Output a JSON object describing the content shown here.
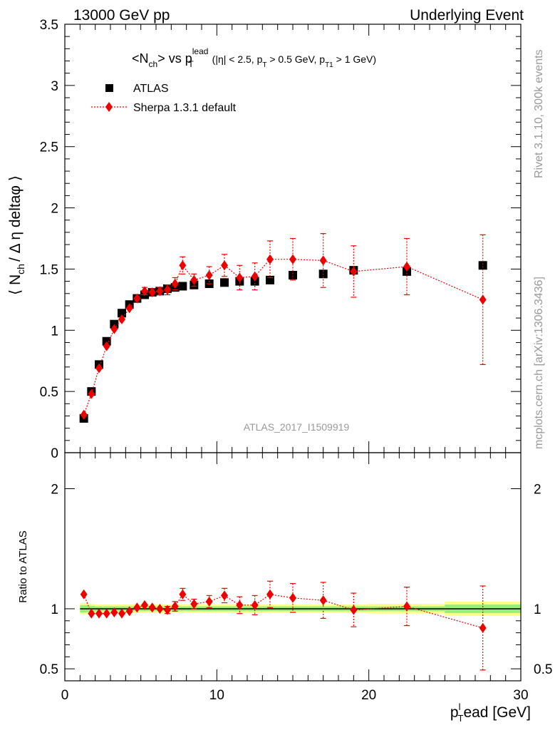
{
  "header": {
    "left": "13000 GeV pp",
    "right": "Underlying Event"
  },
  "side_labels": {
    "rivet": "Rivet 3.1.10,  300k events",
    "mcplots": "mcplots.cern.ch [arXiv:1306.3436]"
  },
  "watermark": "ATLAS_2017_I1509919",
  "colors": {
    "data": "#000000",
    "mc": "#ee0000",
    "band_inner": "#99ee77",
    "band_outer": "#ffff88"
  },
  "chart_data": [
    {
      "type": "scatter",
      "panel": "main",
      "title": {
        "part1": "<N",
        "sub1": "ch",
        "part2": "> vs p",
        "sup2": "lead",
        "sub2": "T",
        "part3": " (|η| < 2.5, p",
        "sub3": "T",
        "part4": " > 0.5 GeV, p",
        "sub4": "T1",
        "part5": " > 1 GeV)"
      },
      "ylabel": {
        "part1": "⟨ N",
        "sub": "ch",
        "part2": "/ Δ η deltaφ ⟩"
      },
      "xlim": [
        0,
        30
      ],
      "ylim": [
        0,
        3.5
      ],
      "yticks": [
        0,
        0.5,
        1,
        1.5,
        2,
        2.5,
        3,
        3.5
      ],
      "ytick_labels": [
        "0",
        "0.5",
        "1",
        "1.5",
        "2",
        "2.5",
        "3",
        "3.5"
      ],
      "legend_position": "top-left",
      "series": [
        {
          "name": "ATLAS",
          "marker": "square",
          "x": [
            1.25,
            1.75,
            2.25,
            2.75,
            3.25,
            3.75,
            4.25,
            4.75,
            5.25,
            5.75,
            6.25,
            6.75,
            7.25,
            7.75,
            8.5,
            9.5,
            10.5,
            11.5,
            12.5,
            13.5,
            15,
            17,
            19,
            22.5,
            27.5
          ],
          "y": [
            0.28,
            0.5,
            0.72,
            0.91,
            1.05,
            1.14,
            1.21,
            1.26,
            1.29,
            1.31,
            1.32,
            1.34,
            1.35,
            1.36,
            1.37,
            1.38,
            1.39,
            1.4,
            1.4,
            1.41,
            1.45,
            1.46,
            1.49,
            1.48,
            1.53
          ]
        },
        {
          "name": "Sherpa 1.3.1 default",
          "marker": "diamond",
          "x": [
            1.25,
            1.75,
            2.25,
            2.75,
            3.25,
            3.75,
            4.25,
            4.75,
            5.25,
            5.75,
            6.25,
            6.75,
            7.25,
            7.75,
            8.5,
            9.5,
            10.5,
            11.5,
            12.5,
            13.5,
            15,
            17,
            19,
            22.5,
            27.5
          ],
          "y": [
            0.31,
            0.48,
            0.69,
            0.87,
            1.01,
            1.09,
            1.18,
            1.26,
            1.32,
            1.31,
            1.32,
            1.33,
            1.38,
            1.53,
            1.41,
            1.45,
            1.53,
            1.43,
            1.44,
            1.58,
            1.58,
            1.57,
            1.48,
            1.52,
            1.25
          ],
          "yerr": [
            0.02,
            0.02,
            0.02,
            0.02,
            0.02,
            0.02,
            0.02,
            0.02,
            0.03,
            0.03,
            0.03,
            0.04,
            0.05,
            0.07,
            0.05,
            0.07,
            0.09,
            0.1,
            0.11,
            0.15,
            0.17,
            0.22,
            0.21,
            0.23,
            0.53
          ]
        }
      ]
    },
    {
      "type": "scatter",
      "panel": "ratio",
      "ylabel": "Ratio to ATLAS",
      "xlabel": {
        "part1": "p",
        "sup": "l",
        "sub": "T",
        "part2": "ead [GeV]"
      },
      "xlim": [
        0,
        30
      ],
      "ylim": [
        0.4,
        2.3
      ],
      "xticks": [
        0,
        10,
        20,
        30
      ],
      "xtick_labels": [
        "0",
        "10",
        "20",
        "30"
      ],
      "yticks": [
        0.5,
        1,
        2
      ],
      "ytick_labels": [
        "0.5",
        "1",
        "2"
      ],
      "reference_line": 1,
      "series": [
        {
          "name": "Sherpa 1.3.1 default",
          "marker": "diamond",
          "x": [
            1.25,
            1.75,
            2.25,
            2.75,
            3.25,
            3.75,
            4.25,
            4.75,
            5.25,
            5.75,
            6.25,
            6.75,
            7.25,
            7.75,
            8.5,
            9.5,
            10.5,
            11.5,
            12.5,
            13.5,
            15,
            17,
            19,
            22.5,
            27.5
          ],
          "y": [
            1.12,
            0.96,
            0.96,
            0.96,
            0.97,
            0.96,
            0.98,
            1.01,
            1.03,
            1.01,
            1.0,
            0.99,
            1.02,
            1.12,
            1.04,
            1.06,
            1.11,
            1.03,
            1.03,
            1.12,
            1.09,
            1.07,
            0.99,
            1.02,
            0.84
          ],
          "yerr": [
            0.02,
            0.02,
            0.02,
            0.02,
            0.02,
            0.02,
            0.02,
            0.02,
            0.02,
            0.02,
            0.02,
            0.03,
            0.04,
            0.05,
            0.04,
            0.05,
            0.06,
            0.07,
            0.08,
            0.11,
            0.12,
            0.15,
            0.14,
            0.16,
            0.35
          ]
        }
      ],
      "band": {
        "x_edges": [
          1,
          1.5,
          2,
          2.5,
          3,
          3.5,
          4,
          4.5,
          5,
          5.5,
          6,
          6.5,
          7,
          7.5,
          8,
          9,
          10,
          11,
          12,
          13,
          14,
          16,
          18,
          20,
          25,
          30
        ],
        "inner": [
          0.03,
          0.025,
          0.02,
          0.02,
          0.02,
          0.02,
          0.02,
          0.02,
          0.02,
          0.02,
          0.02,
          0.02,
          0.02,
          0.02,
          0.02,
          0.02,
          0.02,
          0.02,
          0.02,
          0.02,
          0.02,
          0.02,
          0.02,
          0.02,
          0.035
        ],
        "outer": [
          0.045,
          0.04,
          0.035,
          0.035,
          0.035,
          0.035,
          0.035,
          0.035,
          0.035,
          0.035,
          0.035,
          0.035,
          0.035,
          0.035,
          0.035,
          0.035,
          0.035,
          0.035,
          0.035,
          0.035,
          0.035,
          0.035,
          0.035,
          0.04,
          0.06
        ]
      }
    }
  ]
}
